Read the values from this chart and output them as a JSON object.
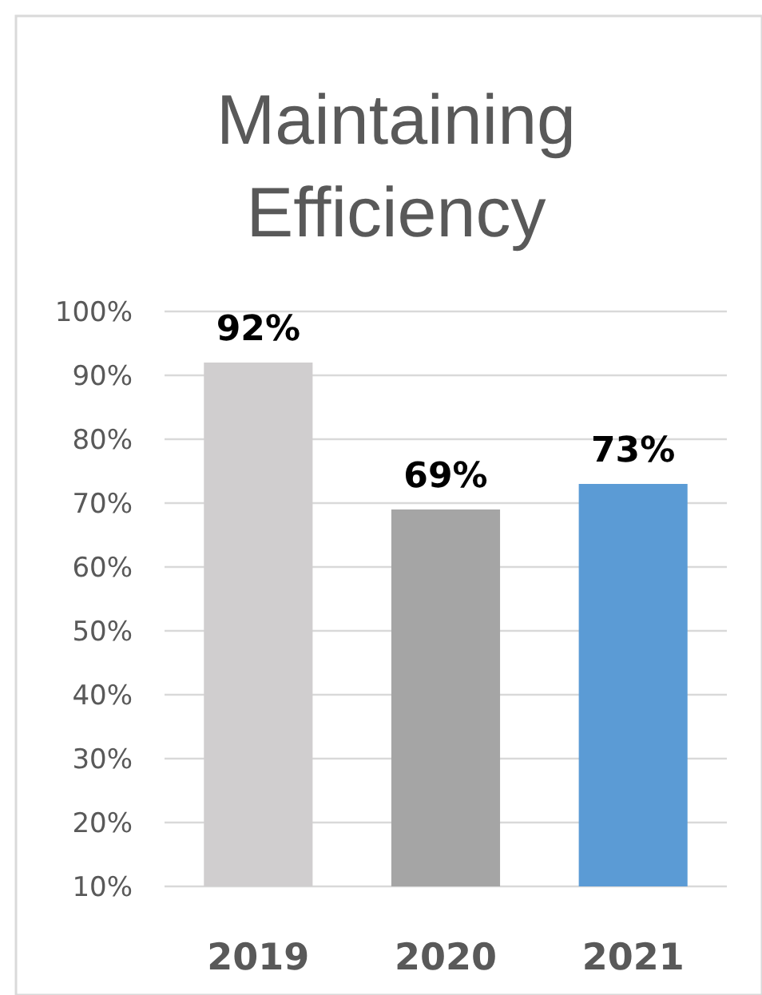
{
  "chart_data": {
    "type": "bar",
    "title": "Maintaining Efficiency",
    "categories": [
      "2019",
      "2020",
      "2021"
    ],
    "values": [
      92,
      69,
      73
    ],
    "colors": [
      "#d0cecf",
      "#a5a5a5",
      "#5b9bd5"
    ],
    "value_labels": [
      "92%",
      "69%",
      "73%"
    ],
    "ylim": [
      10,
      100
    ],
    "yticks": [
      {
        "value": 10,
        "label": "10%"
      },
      {
        "value": 20,
        "label": "20%"
      },
      {
        "value": 30,
        "label": "30%"
      },
      {
        "value": 40,
        "label": "40%"
      },
      {
        "value": 50,
        "label": "50%"
      },
      {
        "value": 60,
        "label": "60%"
      },
      {
        "value": 70,
        "label": "70%"
      },
      {
        "value": 80,
        "label": "80%"
      },
      {
        "value": 90,
        "label": "90%"
      },
      {
        "value": 100,
        "label": "100%"
      }
    ],
    "grid": "y"
  }
}
